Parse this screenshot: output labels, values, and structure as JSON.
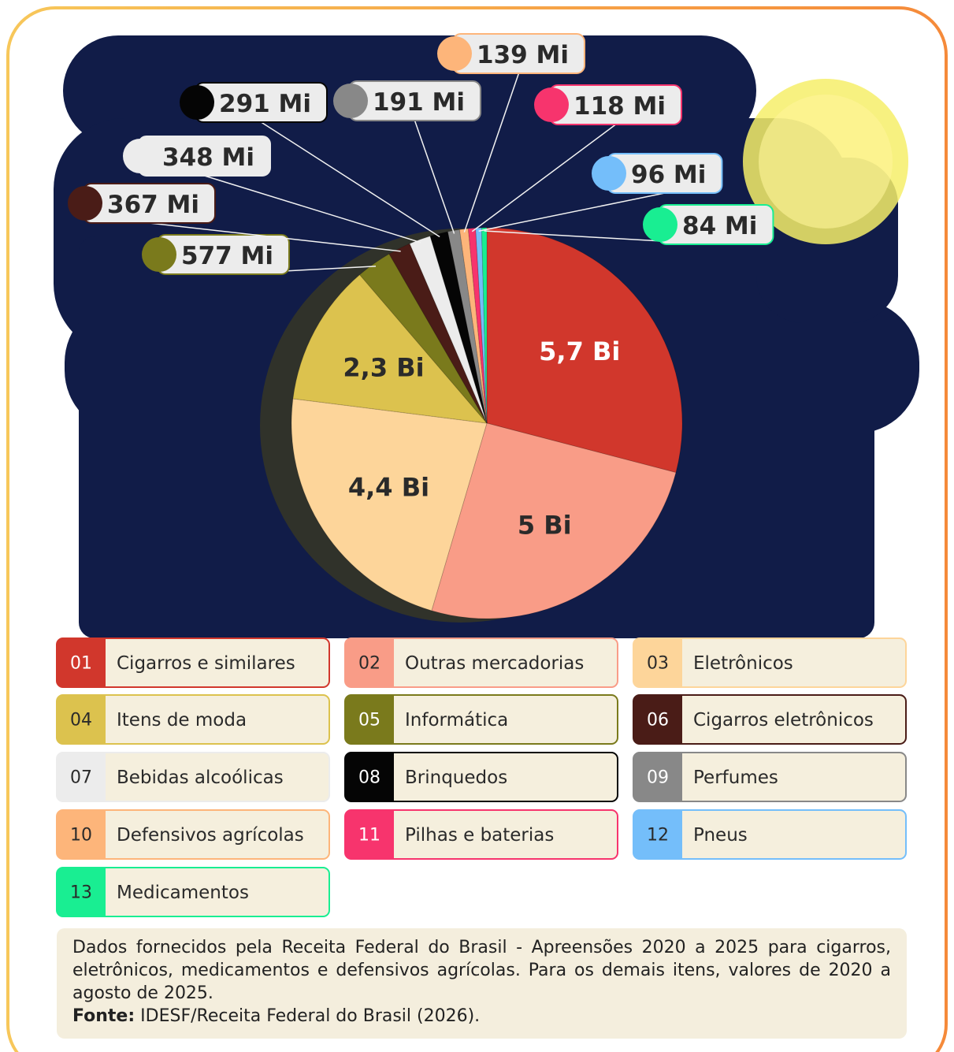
{
  "chart_data": {
    "type": "pie",
    "categories": [
      "Cigarros e similares",
      "Outras mercadorias",
      "Eletrônicos",
      "Itens de moda",
      "Informática",
      "Cigarros eletrônicos",
      "Bebidas alcoólicas",
      "Brinquedos",
      "Perfumes",
      "Defensivos agrícolas",
      "Pilhas e baterias",
      "Pneus",
      "Medicamentos"
    ],
    "legend_codes": [
      "01",
      "02",
      "03",
      "04",
      "05",
      "06",
      "07",
      "08",
      "09",
      "10",
      "11",
      "12",
      "13"
    ],
    "values": [
      5700,
      5000,
      4400,
      2300,
      577,
      367,
      348,
      291,
      191,
      139,
      118,
      96,
      84
    ],
    "value_labels": [
      "5,7 Bi",
      "5 Bi",
      "4,4 Bi",
      "2,3 Bi",
      "577 Mi",
      "367 Mi",
      "348 Mi",
      "291 Mi",
      "191 Mi",
      "139 Mi",
      "118 Mi",
      "96 Mi",
      "84 Mi"
    ],
    "colors": [
      "#d1372c",
      "#f99c87",
      "#fdd59a",
      "#dcc24e",
      "#7a7a1c",
      "#4a1c17",
      "#ececec",
      "#050505",
      "#888888",
      "#fdb57a",
      "#f7346d",
      "#74befa",
      "#19ee92"
    ]
  },
  "footnote": {
    "text": "Dados fornecidos pela Receita Federal do Brasil - Apreensões 2020 a 2025 para cigarros, eletrônicos, medicamentos e defensivos agrícolas. Para os demais itens, valores de 2020 a agosto de 2025.",
    "source_label": "Fonte:",
    "source": "IDESF/Receita Federal do Brasil (2026)."
  }
}
